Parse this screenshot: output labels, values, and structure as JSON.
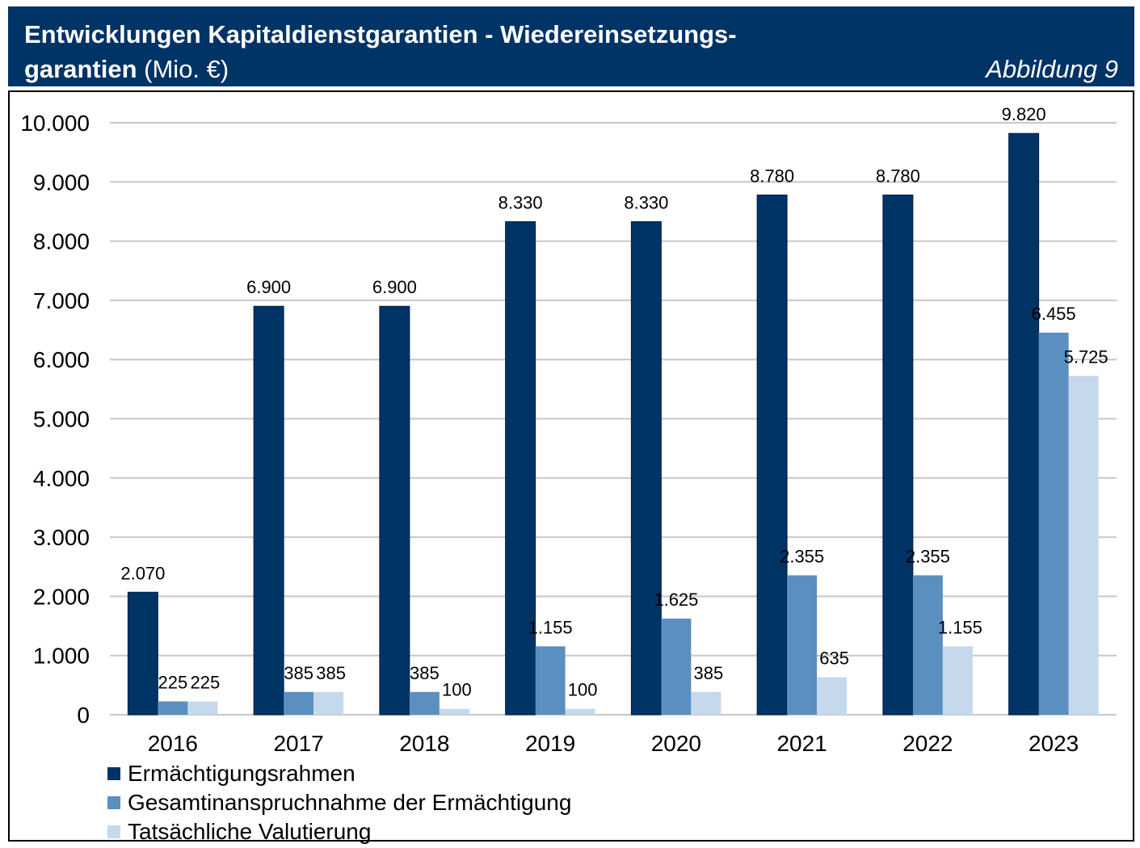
{
  "header": {
    "title_line1": "Entwicklungen Kapitaldienstgarantien - Wiedereinsetzungs-",
    "title_line2_bold": "garantien",
    "title_line2_unit": "(Mio. €)",
    "figure_label": "Abbildung 9"
  },
  "colors": {
    "header_bg": "#003366",
    "series_1": "#003366",
    "series_2": "#5b8fc0",
    "series_3": "#c5d8ec",
    "grid": "#c8c8c8"
  },
  "chart_data": {
    "type": "bar",
    "title": "Entwicklungen Kapitaldienstgarantien - Wiedereinsetzungsgarantien (Mio. €)",
    "xlabel": "",
    "ylabel": "",
    "ylim": [
      0,
      10000
    ],
    "y_ticks": [
      0,
      1000,
      2000,
      3000,
      4000,
      5000,
      6000,
      7000,
      8000,
      9000,
      10000
    ],
    "y_tick_labels": [
      "0",
      "1.000",
      "2.000",
      "3.000",
      "4.000",
      "5.000",
      "6.000",
      "7.000",
      "8.000",
      "9.000",
      "10.000"
    ],
    "grid": true,
    "legend_position": "bottom-left",
    "categories": [
      "2016",
      "2017",
      "2018",
      "2019",
      "2020",
      "2021",
      "2022",
      "2023"
    ],
    "series": [
      {
        "name": "Ermächtigungsrahmen",
        "color": "#003366",
        "values": [
          2070,
          6900,
          6900,
          8330,
          8330,
          8780,
          8780,
          9820
        ],
        "labels": [
          "2.070",
          "6.900",
          "6.900",
          "8.330",
          "8.330",
          "8.780",
          "8.780",
          "9.820"
        ]
      },
      {
        "name": "Gesamtinanspruchnahme der Ermächtigung",
        "color": "#5b8fc0",
        "values": [
          225,
          385,
          385,
          1155,
          1625,
          2355,
          2355,
          6455
        ],
        "labels": [
          "225",
          "385",
          "385",
          "1.155",
          "1.625",
          "2.355",
          "2.355",
          "6.455"
        ]
      },
      {
        "name": "Tatsächliche Valutierung",
        "color": "#c5d8ec",
        "values": [
          225,
          385,
          100,
          100,
          385,
          635,
          1155,
          5725
        ],
        "labels": [
          "225",
          "385",
          "100",
          "100",
          "385",
          "635",
          "1.155",
          "5.725"
        ]
      }
    ]
  }
}
